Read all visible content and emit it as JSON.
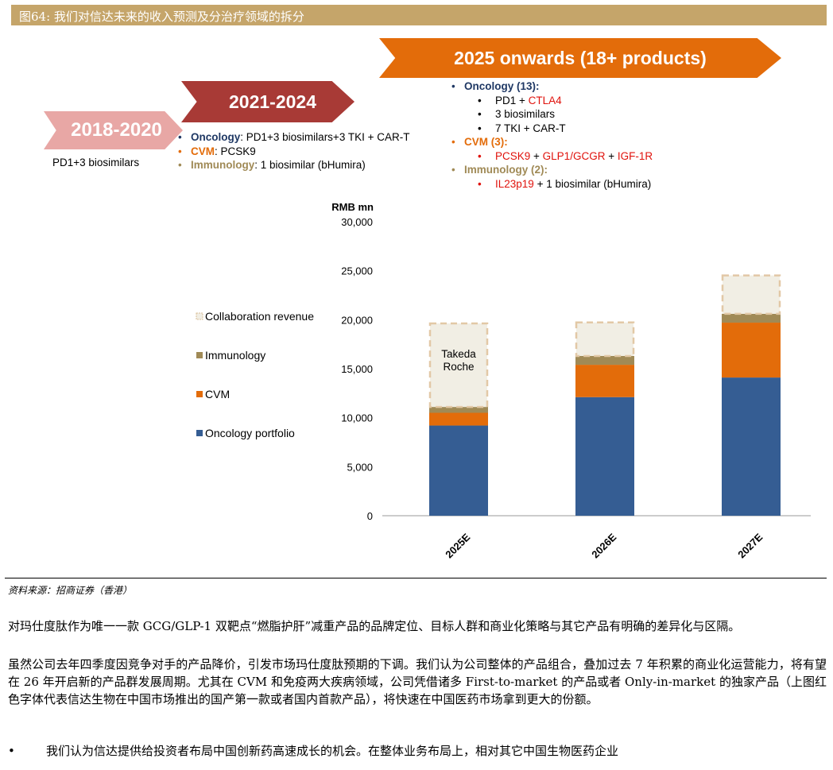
{
  "figure": {
    "caption": "图64: 我们对信达未来的收入预测及分治疗领域的拆分",
    "source": "资料来源：招商证券（香港）"
  },
  "timeline": [
    {
      "label": "2018-2020",
      "color": "#e8a7a5"
    },
    {
      "label": "2021-2024",
      "color": "#a83a36"
    },
    {
      "label": "2025 onwards (18+ products)",
      "color": "#e36c0a"
    }
  ],
  "notes": {
    "n2018": "PD1+3 biosimilars",
    "n2021": {
      "oncology_label": "Oncology",
      "oncology_text": ": PD1+3 biosimilars+3 TKI + CAR-T",
      "cvm_label": "CVM",
      "cvm_text": ": PCSK9",
      "immuno_label": "Immunology",
      "immuno_text": ": 1 biosimilar (bHumira)"
    },
    "n2025": {
      "oncology_label": "Oncology (13):",
      "onc_1a": "PD1 + ",
      "onc_1b": "CTLA4",
      "onc_2": "3 biosimilars",
      "onc_3": "7 TKI + CAR-T",
      "cvm_label": "CVM (3):",
      "cvm_1a": "PCSK9",
      "cvm_1b": " + ",
      "cvm_1c": "GLP1/GCGR",
      "cvm_1d": " + ",
      "cvm_1e": "IGF-1R",
      "immuno_label": "Immunology (2):",
      "imm_1a": "IL23p19",
      "imm_1b": " + 1 biosimilar (bHumira)"
    },
    "bullet": "•",
    "dot": "•"
  },
  "chart_data": {
    "type": "bar",
    "stacked": true,
    "ylabel": "RMB mn",
    "ylim": [
      0,
      30000
    ],
    "yticks": [
      "0",
      "5,000",
      "10,000",
      "15,000",
      "20,000",
      "25,000",
      "30,000"
    ],
    "categories": [
      "2025E",
      "2026E",
      "2027E"
    ],
    "series": [
      {
        "name": "Oncology portfolio",
        "color": "#355d93",
        "values": [
          9200,
          12100,
          14100
        ]
      },
      {
        "name": "CVM",
        "color": "#e36c0a",
        "values": [
          1300,
          3300,
          5600
        ]
      },
      {
        "name": "Immunology",
        "color": "#a08a56",
        "values": [
          600,
          900,
          900
        ]
      },
      {
        "name": "Collaboration revenue",
        "color": "#f1eee4",
        "values": [
          8600,
          3500,
          4000
        ]
      }
    ],
    "annotations": [
      {
        "category": "2025E",
        "lines": [
          "Takeda",
          "Roche"
        ]
      }
    ],
    "legend": "left"
  },
  "body": {
    "p1": "对玛仕度肽作为唯一一款 GCG/GLP-1 双靶点“燃脂护肝”减重产品的品牌定位、目标人群和商业化策略与其它产品有明确的差异化与区隔。",
    "p2": "虽然公司去年四季度因竞争对手的产品降价，引发市场玛仕度肽预期的下调。我们认为公司整体的产品组合，叠加过去 7 年积累的商业化运营能力，将有望在 26 年开启新的产品群发展周期。尤其在 CVM 和免疫两大疾病领域，公司凭借诸多 First-to-market 的产品或者 Only-in-market 的独家产品（上图红色字体代表信达生物在中国市场推出的国产第一款或者国内首款产品），将快速在中国医药市场拿到更大的份额。",
    "p3": "我们认为信达提供给投资者布局中国创新药高速成长的机会。在整体业务布局上，相对其它中国生物医药企业"
  }
}
